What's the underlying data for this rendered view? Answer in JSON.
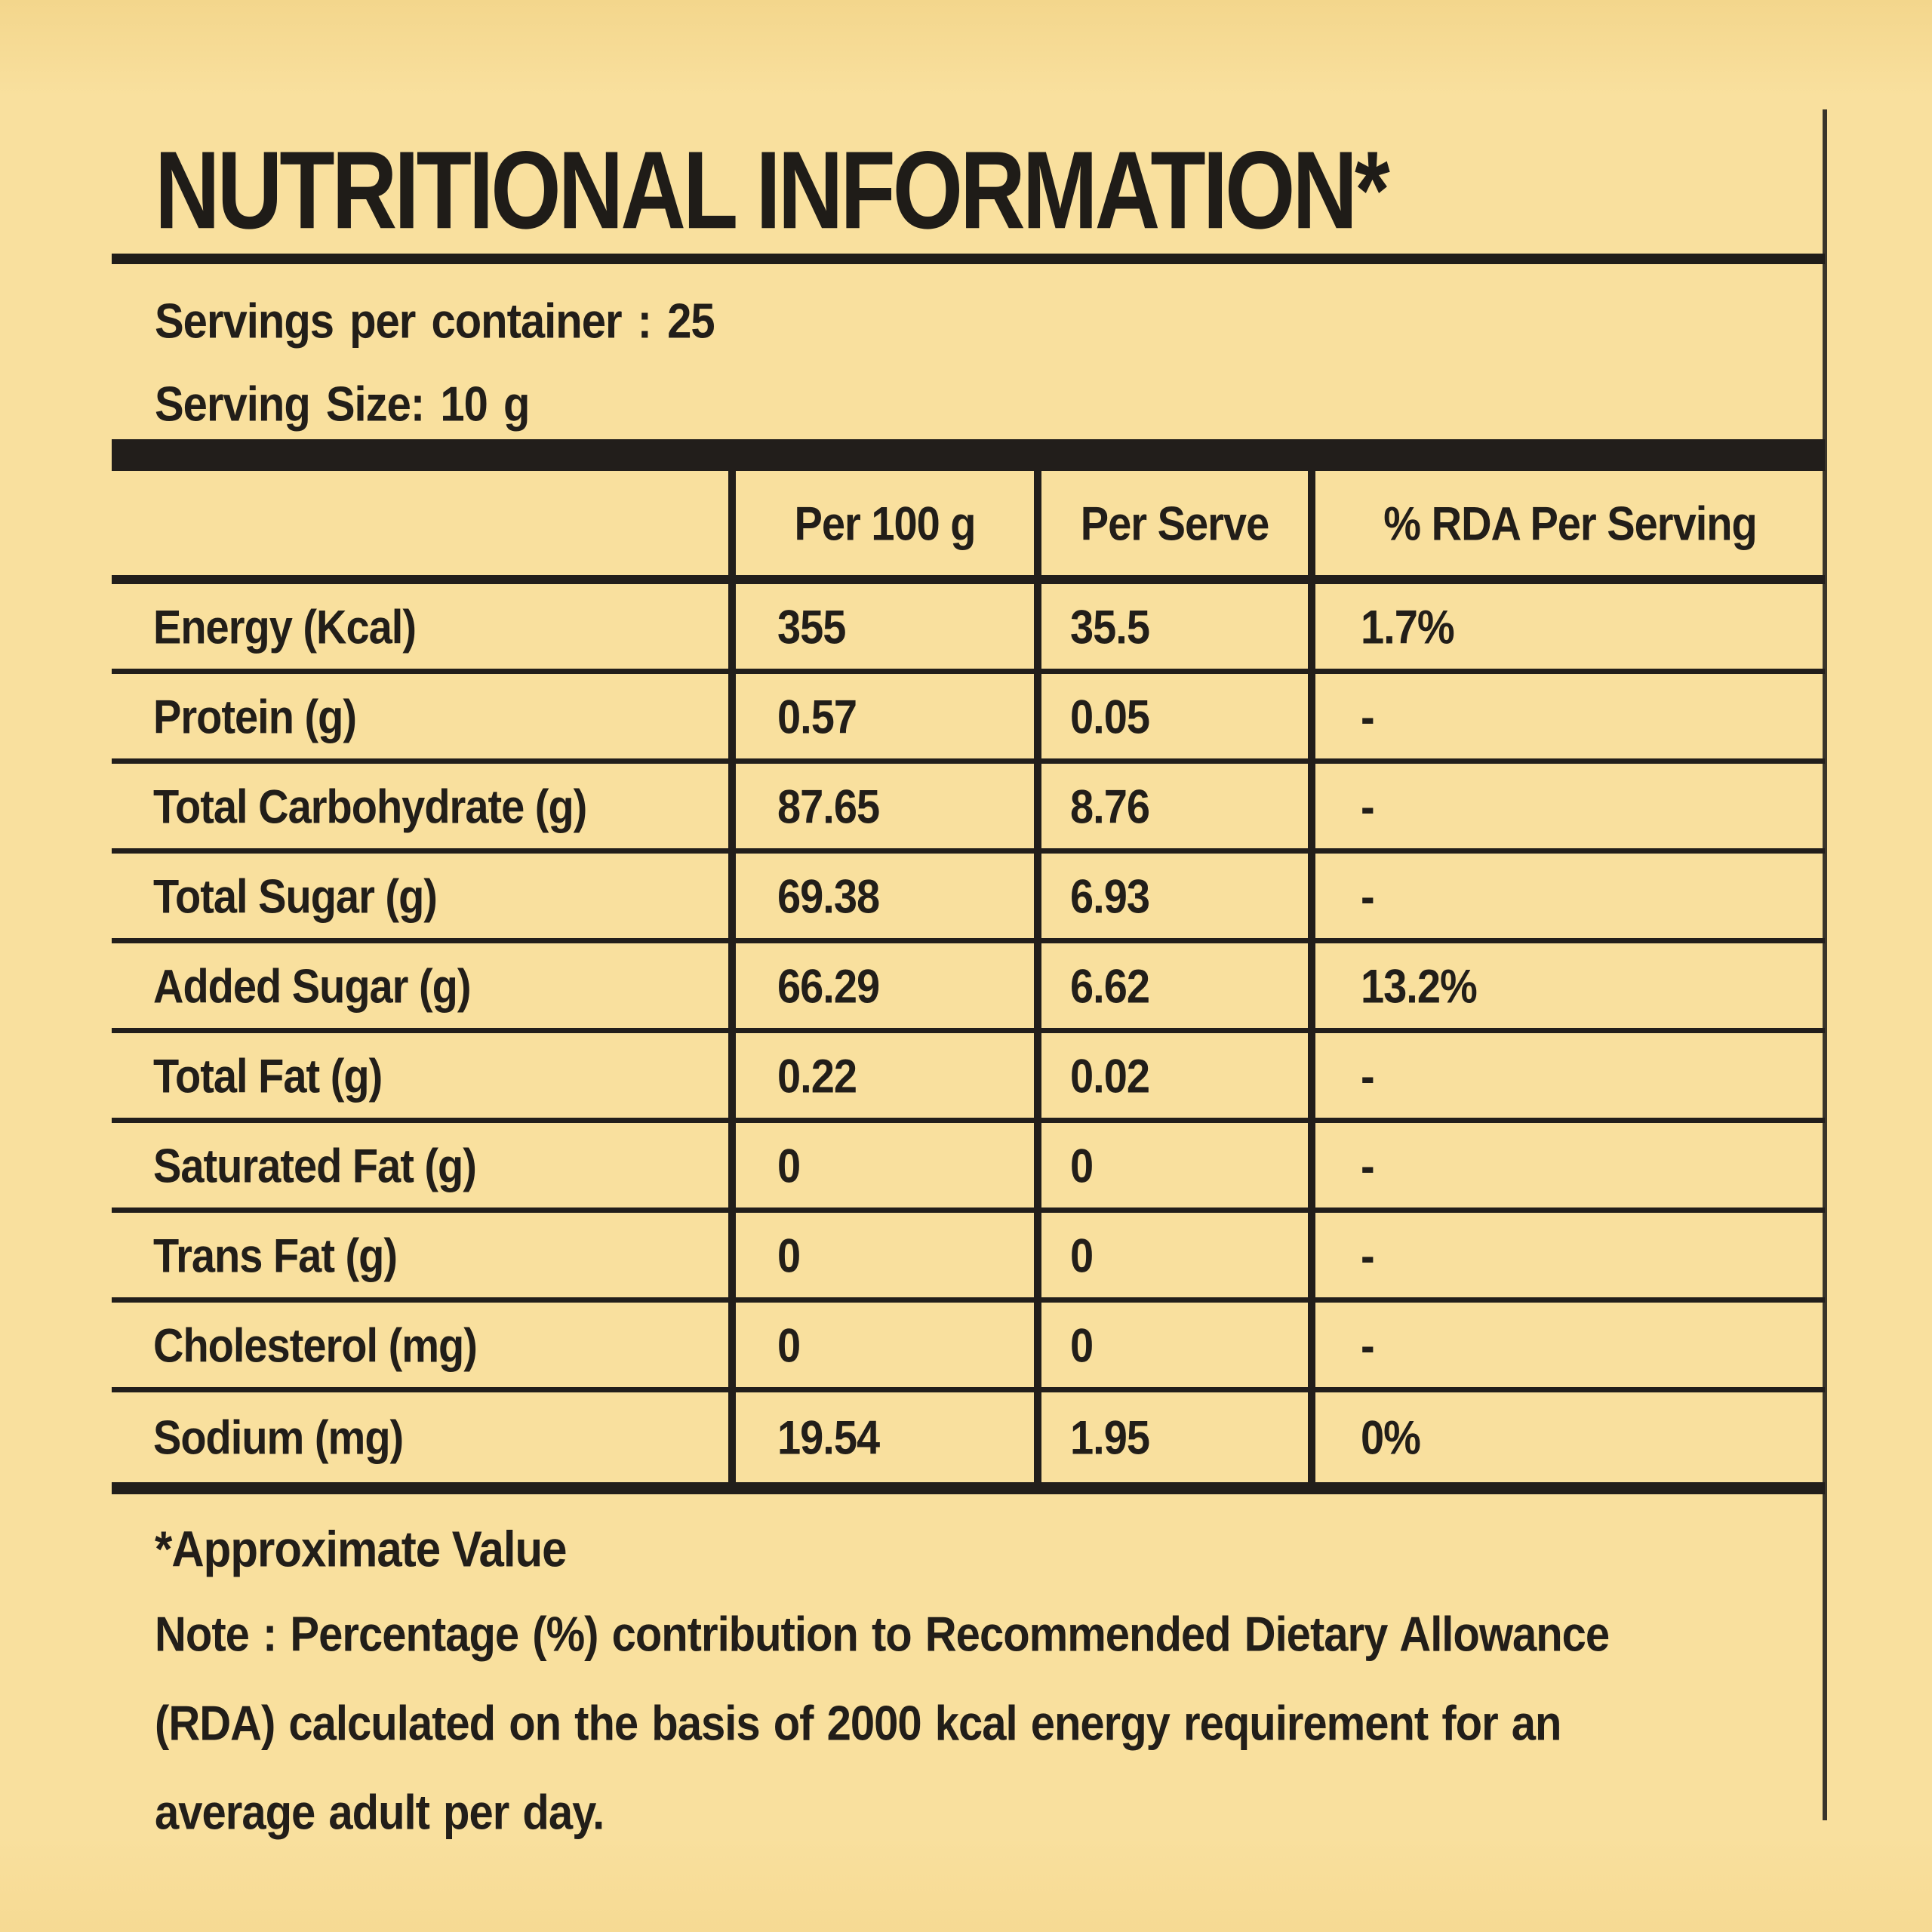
{
  "title": "NUTRITIONAL INFORMATION*",
  "serving_info": {
    "servings_per_container": "Servings  per  container : 25",
    "serving_size": "Serving Size: 10 g"
  },
  "table": {
    "columns": [
      "Per 100 g",
      "Per Serve",
      "% RDA Per Serving"
    ],
    "rows": [
      {
        "nutrient": "Energy (Kcal)",
        "per_100g": "355",
        "per_serve": "35.5",
        "rda": "1.7%"
      },
      {
        "nutrient": "Protein (g)",
        "per_100g": "0.57",
        "per_serve": "0.05",
        "rda": "-"
      },
      {
        "nutrient": "Total Carbohydrate (g)",
        "per_100g": "87.65",
        "per_serve": "8.76",
        "rda": "-"
      },
      {
        "nutrient": "Total Sugar (g)",
        "per_100g": "69.38",
        "per_serve": "6.93",
        "rda": "-"
      },
      {
        "nutrient": "Added Sugar (g)",
        "per_100g": "66.29",
        "per_serve": "6.62",
        "rda": "13.2%"
      },
      {
        "nutrient": "Total Fat (g)",
        "per_100g": "0.22",
        "per_serve": "0.02",
        "rda": "-"
      },
      {
        "nutrient": "Saturated Fat (g)",
        "per_100g": "0",
        "per_serve": "0",
        "rda": "-"
      },
      {
        "nutrient": "Trans Fat (g)",
        "per_100g": "0",
        "per_serve": "0",
        "rda": "-"
      },
      {
        "nutrient": "Cholesterol (mg)",
        "per_100g": "0",
        "per_serve": "0",
        "rda": "-"
      },
      {
        "nutrient": "Sodium (mg)",
        "per_100g": "19.54",
        "per_serve": "1.95",
        "rda": "0%"
      }
    ]
  },
  "footnotes": {
    "approximate": "*Approximate Value",
    "note_line1": "Note : Percentage (%) contribution to Recommended Dietary Allowance",
    "note_line2": "(RDA) calculated on the basis of 2000 kcal energy requirement for an",
    "note_line3": "average adult per day."
  },
  "colors": {
    "background": "#F9E09E",
    "ink": "#221E19"
  }
}
